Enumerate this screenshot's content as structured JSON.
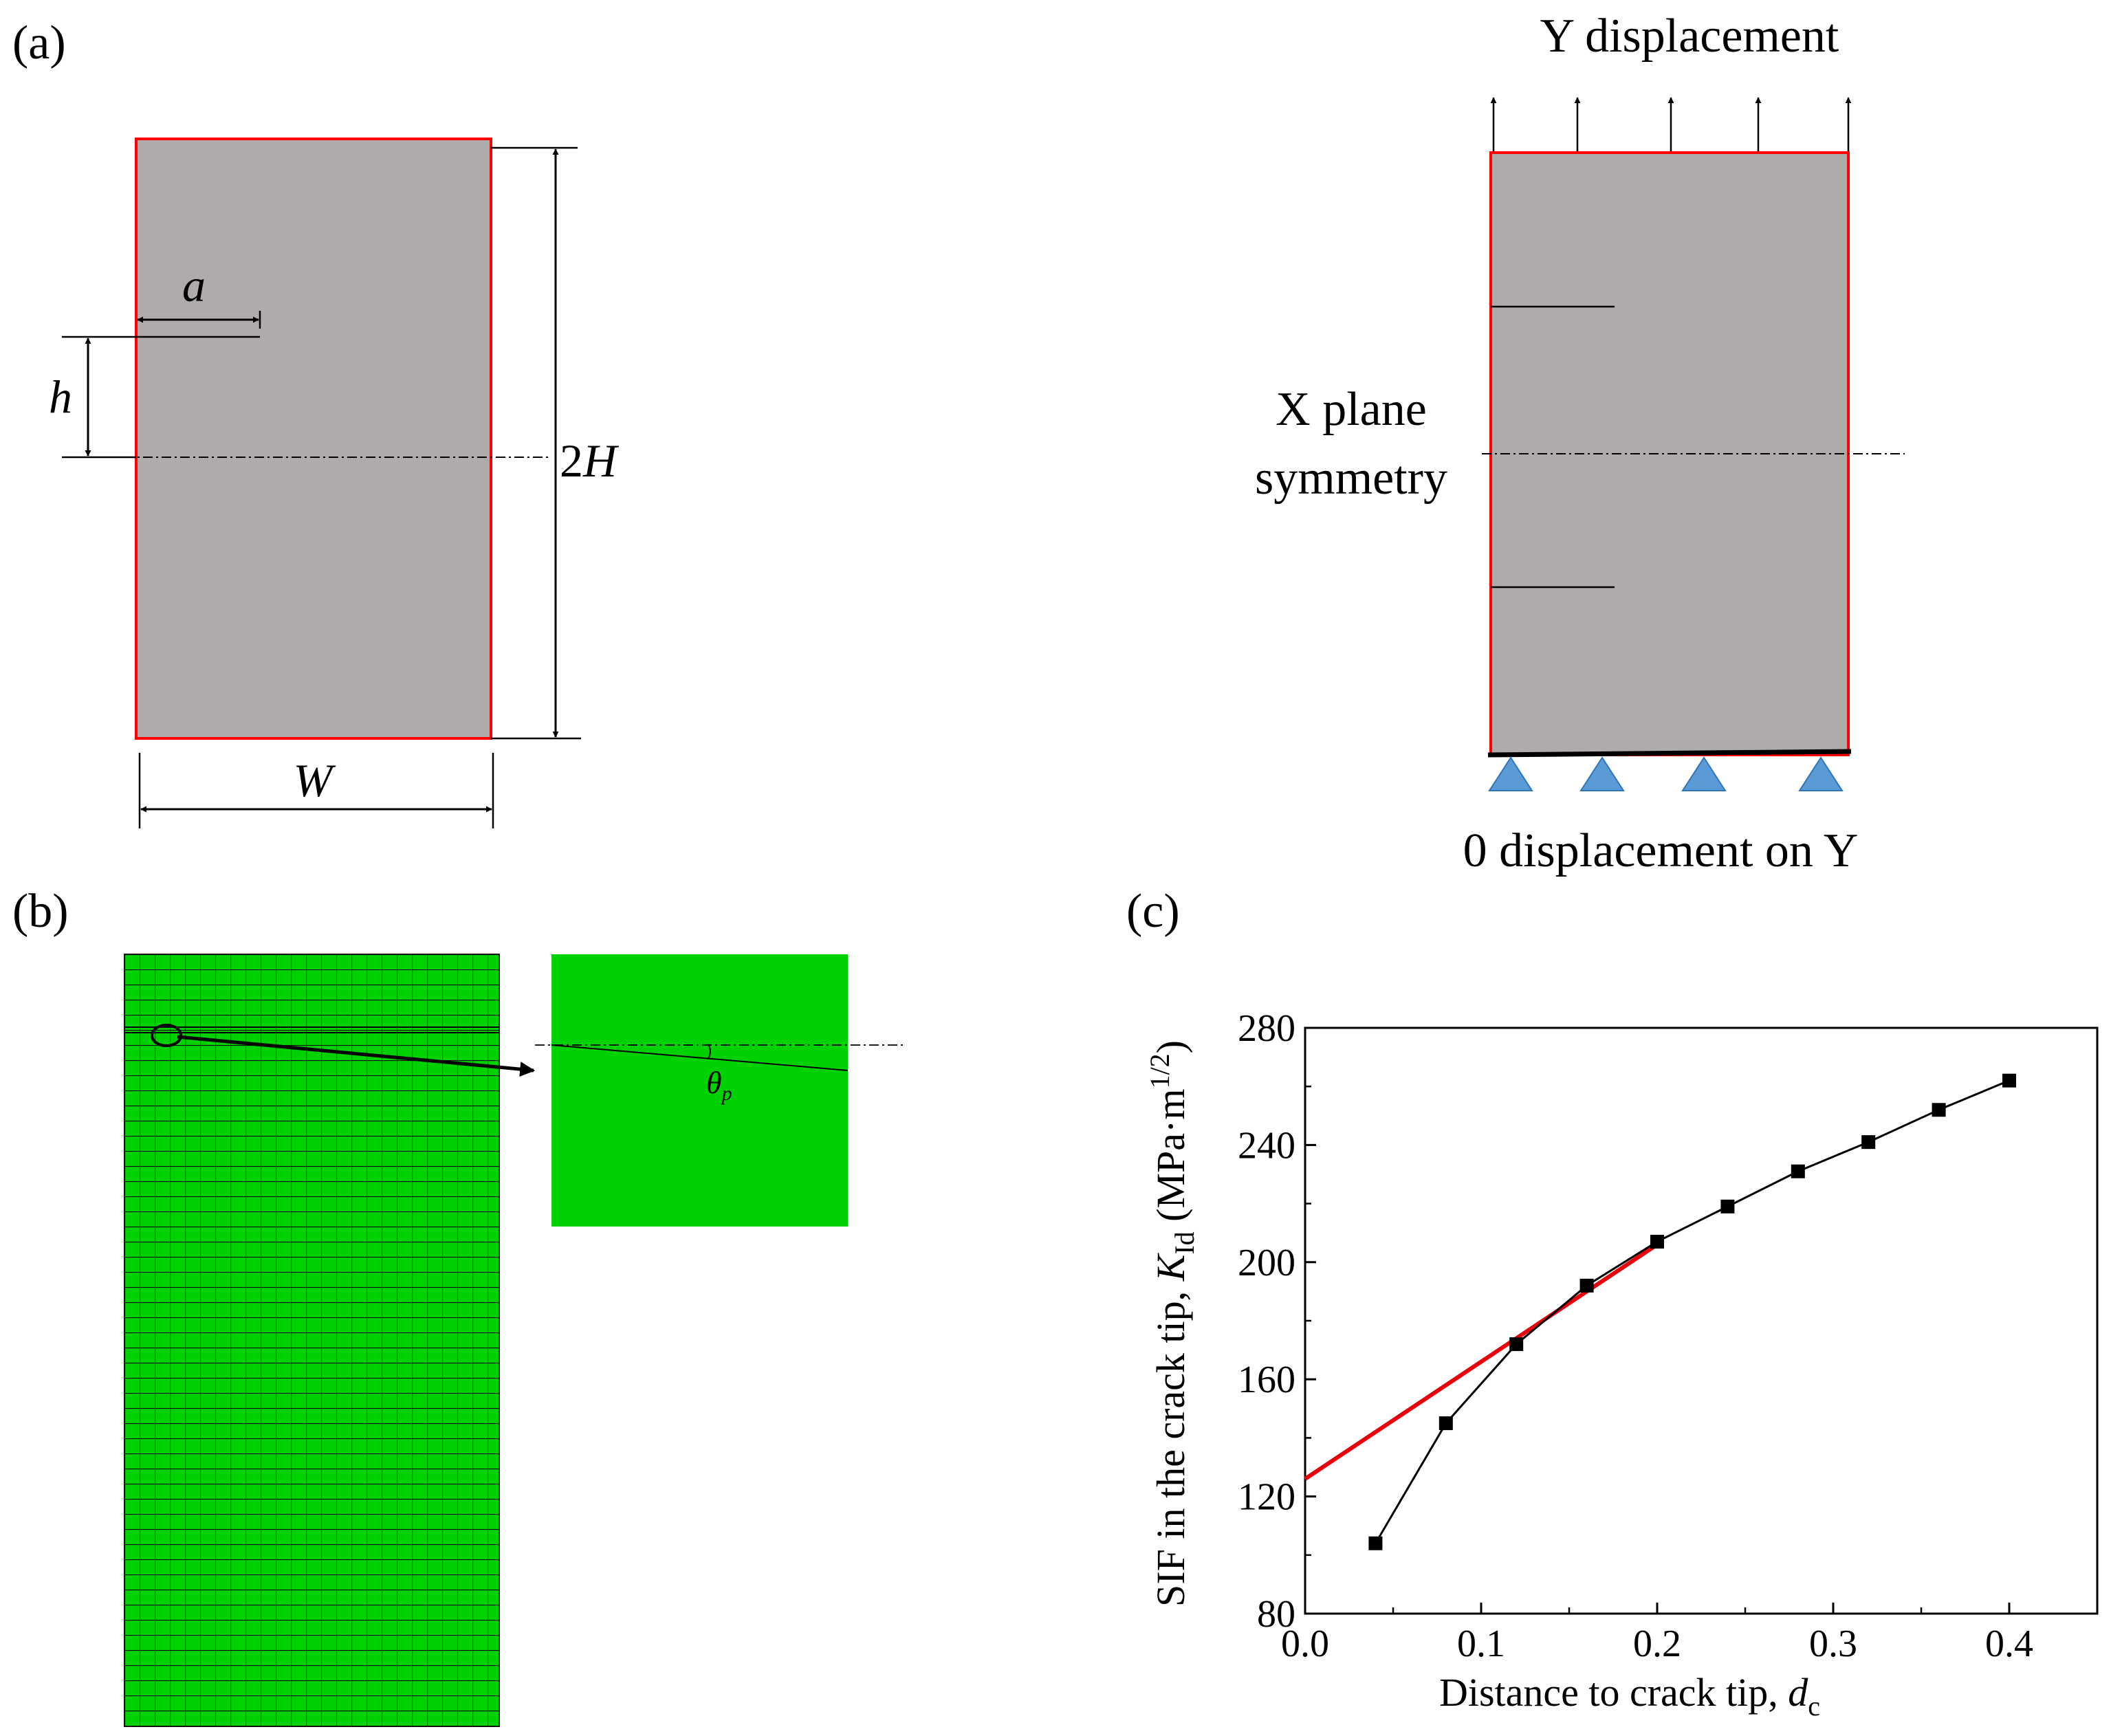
{
  "panels": {
    "a": {
      "label": "(a)",
      "dims": {
        "a": "a",
        "h": "h",
        "two_h_prefix": "2",
        "two_h_var": "H",
        "w": "W"
      },
      "boundary": {
        "top_label": "Y displacement",
        "symmetry_line1": "X plane",
        "symmetry_line2": "symmetry",
        "bottom_label": "0 displacement on Y"
      }
    },
    "b": {
      "label": "(b)",
      "angle_symbol": "θ",
      "angle_subscript": "p"
    },
    "c": {
      "label": "(c)",
      "ylabel_main": "SIF in the crack tip, ",
      "ylabel_var": "K",
      "ylabel_sub": "Id",
      "ylabel_units_pre": " (MPa·m",
      "ylabel_units_exp": "1/2",
      "ylabel_units_post": ")",
      "xlabel_main": "Distance to crack tip, ",
      "xlabel_var": "d",
      "xlabel_sub": "c"
    }
  },
  "colors": {
    "specimen_fill": "#afabab",
    "specimen_border": "#ff0000",
    "mesh_fill": "#00d100",
    "support": "#5b9bd5",
    "fit_line": "#e8000b",
    "data_line": "#000000"
  },
  "chart_data": {
    "type": "line",
    "title": "",
    "xlabel": "Distance to crack tip, dc",
    "ylabel": "SIF in the crack tip, KId (MPa·m1/2)",
    "xlim": [
      0.0,
      0.45
    ],
    "ylim": [
      80,
      280
    ],
    "x_ticks": [
      0.0,
      0.1,
      0.2,
      0.3,
      0.4
    ],
    "x_tick_labels": [
      "0.0",
      "0.1",
      "0.2",
      "0.3",
      "0.4"
    ],
    "y_ticks": [
      80,
      120,
      160,
      200,
      240,
      280
    ],
    "y_tick_labels": [
      "80",
      "120",
      "160",
      "200",
      "240",
      "280"
    ],
    "series": [
      {
        "name": "SIF",
        "marker": "square",
        "x": [
          0.04,
          0.08,
          0.12,
          0.16,
          0.2,
          0.24,
          0.28,
          0.32,
          0.36,
          0.4
        ],
        "y": [
          104,
          145,
          172,
          192,
          207,
          219,
          231,
          241,
          252,
          262
        ]
      },
      {
        "name": "linear fit",
        "marker": "none",
        "x": [
          0.0,
          0.2
        ],
        "y": [
          126,
          206
        ]
      }
    ]
  }
}
